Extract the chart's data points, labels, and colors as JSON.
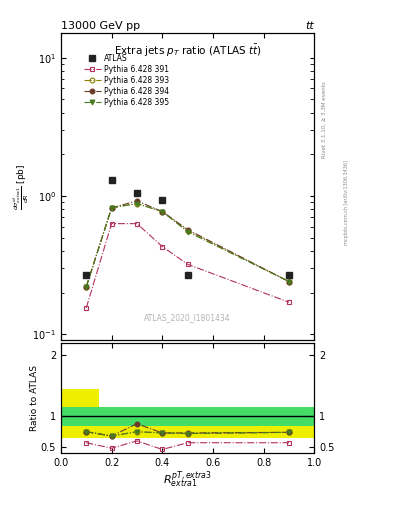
{
  "title_top": "13000 GeV pp",
  "title_top_right": "tt",
  "plot_title": "Extra jets p_{T} ratio (ATLAS ttbar)",
  "ylabel_main": "d#sigma^{id}_{extra1}/dR [pb]",
  "ylabel_ratio": "Ratio to ATLAS",
  "xlabel": "R^{pT,extra3}_{extra1}",
  "watermark": "ATLAS_2020_I1801434",
  "rivet_label": "Rivet 3.1.10, ≥ 3.3M events",
  "mcplots_label": "mcplots.cern.ch [arXiv:1306.3436]",
  "x_values": [
    0.1,
    0.2,
    0.3,
    0.4,
    0.5,
    0.9
  ],
  "atlas_y": [
    0.27,
    1.3,
    1.05,
    0.93,
    0.27,
    0.27
  ],
  "py391_y": [
    0.155,
    0.63,
    0.63,
    0.43,
    0.32,
    0.17
  ],
  "py393_y": [
    0.22,
    0.82,
    0.88,
    0.77,
    0.56,
    0.24
  ],
  "py394_y": [
    0.22,
    0.82,
    0.92,
    0.77,
    0.57,
    0.24
  ],
  "py395_y": [
    0.22,
    0.82,
    0.88,
    0.77,
    0.55,
    0.24
  ],
  "ratio391": [
    0.57,
    0.48,
    0.6,
    0.46,
    0.57,
    0.57
  ],
  "ratio393": [
    0.75,
    0.68,
    0.75,
    0.73,
    0.72,
    0.74
  ],
  "ratio394": [
    0.75,
    0.68,
    0.88,
    0.73,
    0.73,
    0.74
  ],
  "ratio395": [
    0.75,
    0.68,
    0.75,
    0.73,
    0.72,
    0.74
  ],
  "atlas_color": "#222222",
  "py391_color": "#b03060",
  "py393_color": "#8b8000",
  "py394_color": "#6b3a2a",
  "py395_color": "#4a7a20",
  "band_green": "#44dd66",
  "band_yellow": "#eeee00",
  "ylim_main": [
    0.09,
    15
  ],
  "ylim_ratio": [
    0.4,
    2.2
  ],
  "xlim": [
    0.0,
    1.0
  ],
  "ratio_yticks": [
    0.5,
    1.0,
    2.0
  ],
  "ratio_yticklabels": [
    "0.5",
    "1",
    "2"
  ]
}
